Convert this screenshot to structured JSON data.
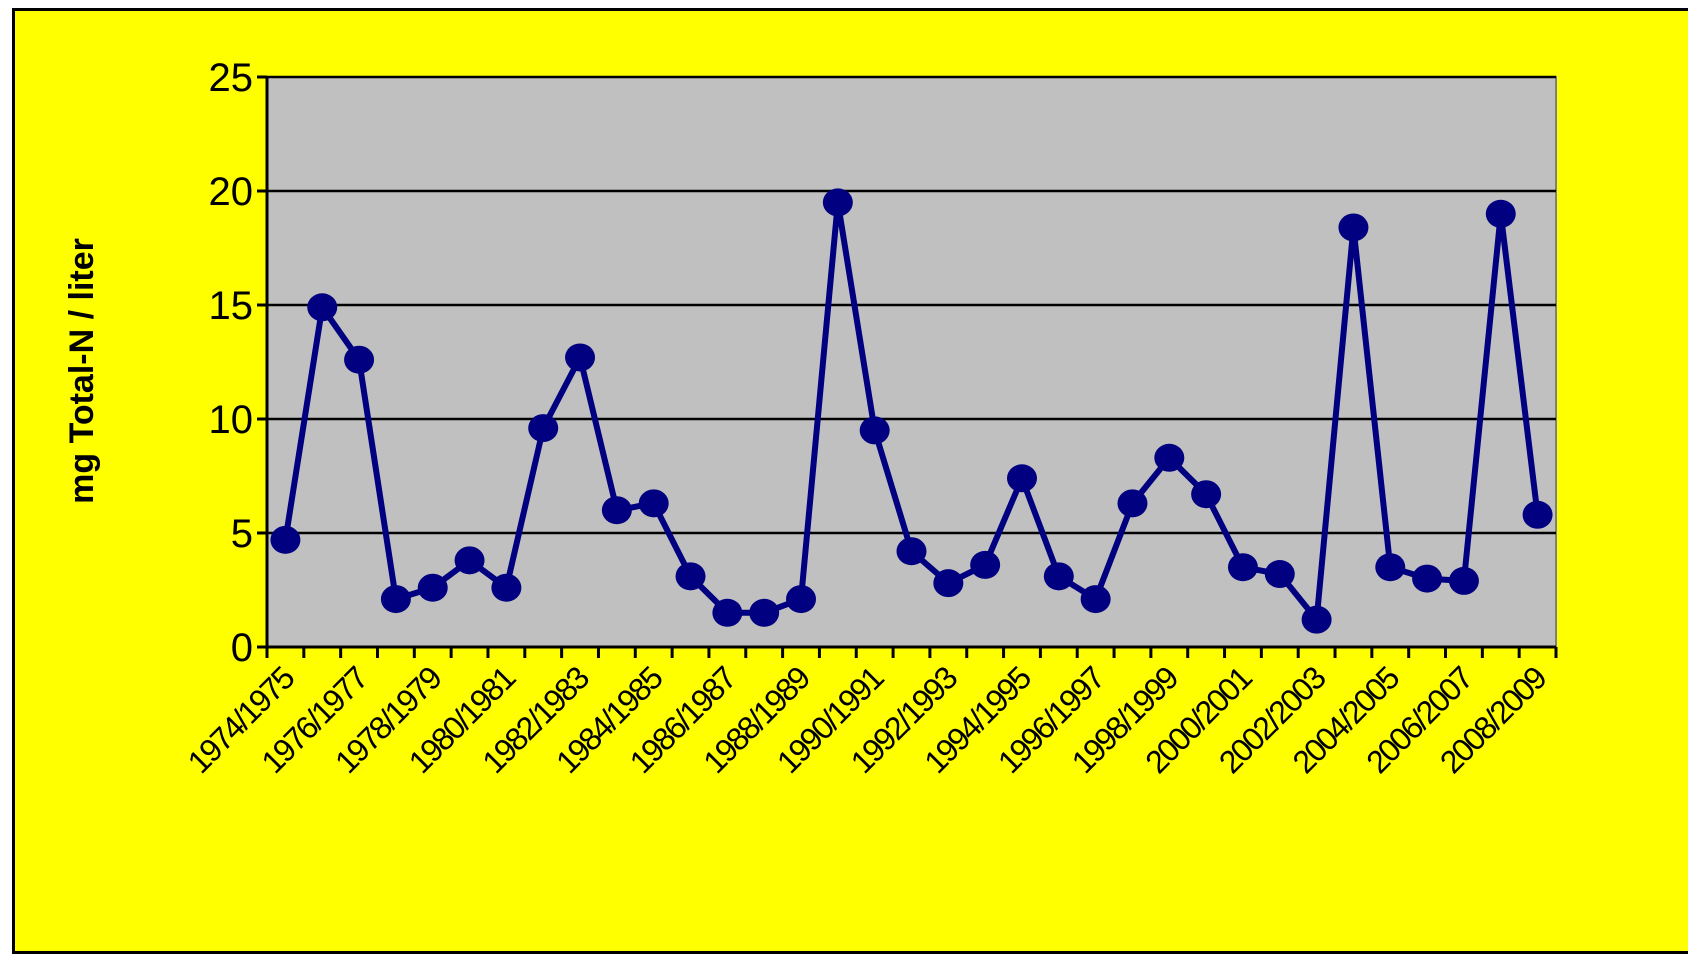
{
  "chart_data": {
    "type": "line",
    "ylabel": "mg Total-N / liter",
    "xlabel": "",
    "ylim": [
      0,
      25
    ],
    "y_ticks": [
      0,
      5,
      10,
      15,
      20,
      25
    ],
    "grid": true,
    "x_tick_labels": [
      "1974/1975",
      "1976/1977",
      "1978/1979",
      "1980/1981",
      "1982/1983",
      "1984/1985",
      "1986/1987",
      "1988/1989",
      "1990/1991",
      "1992/1993",
      "1994/1995",
      "1996/1997",
      "1998/1999",
      "2000/2001",
      "2002/2003",
      "2004/2005",
      "2006/2007",
      "2008/2009"
    ],
    "series": [
      {
        "color": "#000080",
        "values": [
          4.7,
          14.9,
          12.6,
          2.1,
          2.6,
          3.8,
          2.6,
          9.6,
          12.7,
          6.0,
          6.3,
          3.1,
          1.5,
          1.5,
          2.1,
          19.5,
          9.5,
          4.2,
          2.8,
          3.6,
          7.4,
          3.1,
          2.1,
          6.3,
          8.3,
          6.7,
          3.5,
          3.2,
          1.2,
          18.4,
          3.5,
          3.0,
          2.9,
          19.0,
          5.8
        ]
      }
    ],
    "colors": {
      "frame_bg": "#ffff00",
      "plot_bg": "#c0c0c0",
      "line": "#000080"
    }
  }
}
